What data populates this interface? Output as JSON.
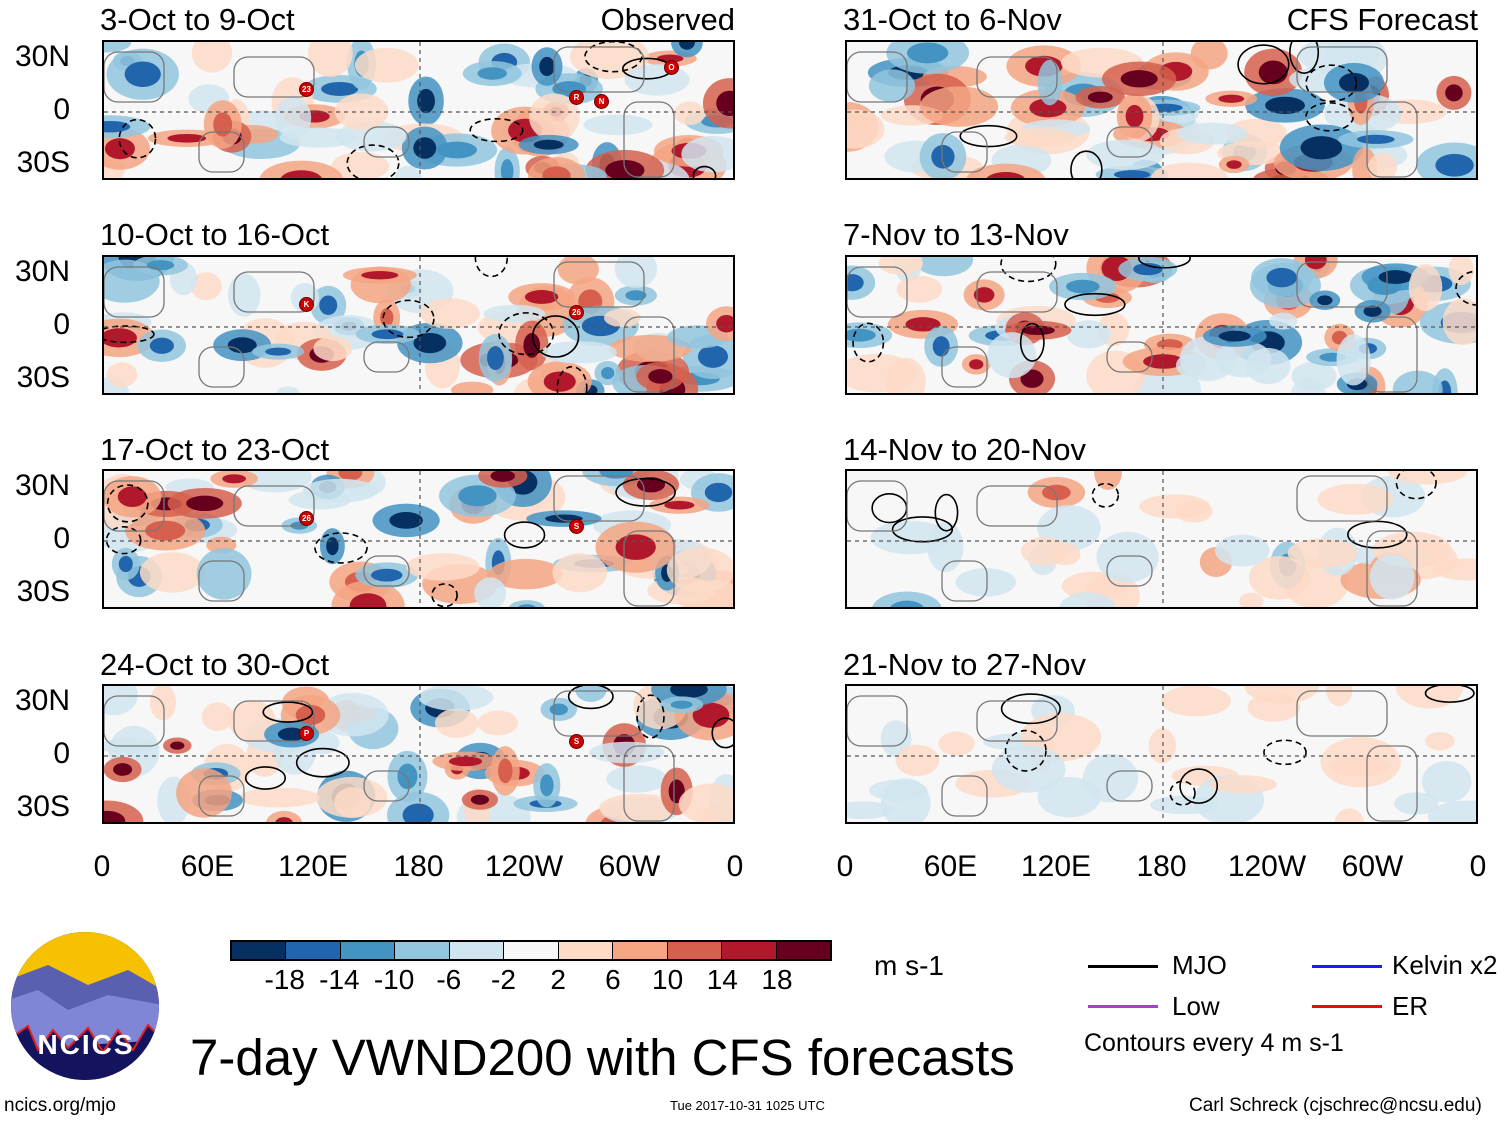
{
  "column_headers": {
    "observed": "Observed",
    "forecast": "CFS Forecast"
  },
  "panels_left": [
    {
      "title": "3-Oct to 9-Oct",
      "storms": [
        "23",
        "R",
        "N",
        "O"
      ]
    },
    {
      "title": "10-Oct to 16-Oct",
      "storms": [
        "K",
        "26"
      ]
    },
    {
      "title": "17-Oct to 23-Oct",
      "storms": [
        "26",
        "S"
      ]
    },
    {
      "title": "24-Oct to 30-Oct",
      "storms": [
        "P",
        "S"
      ]
    }
  ],
  "panels_right": [
    {
      "title": "31-Oct to 6-Nov"
    },
    {
      "title": "7-Nov to 13-Nov"
    },
    {
      "title": "14-Nov to 20-Nov"
    },
    {
      "title": "21-Nov to 27-Nov"
    }
  ],
  "y_ticks": [
    "30N",
    "0",
    "30S"
  ],
  "x_ticks": [
    "0",
    "60E",
    "120E",
    "180",
    "120W",
    "60W",
    "0"
  ],
  "colorbar": {
    "colors": [
      "#053061",
      "#2166ac",
      "#4393c3",
      "#92c5de",
      "#d1e5f0",
      "#f7f7f7",
      "#fddbc7",
      "#f4a582",
      "#d6604d",
      "#b2182b",
      "#67001f"
    ],
    "labels": [
      "-18",
      "-14",
      "-10",
      "-6",
      "-2",
      "2",
      "6",
      "10",
      "14",
      "18"
    ],
    "units": "m s-1"
  },
  "legend": {
    "items": [
      {
        "label": "MJO",
        "color": "#000000"
      },
      {
        "label": "Kelvin x2",
        "color": "#1a1aff"
      },
      {
        "label": "Low",
        "color": "#a040e0"
      },
      {
        "label": "ER",
        "color": "#e01010"
      }
    ],
    "note": "Contours every 4 m s-1"
  },
  "logo_text": "NCICS",
  "main_title": "7-day VWND200 with CFS forecasts",
  "footer": {
    "url": "ncics.org/mjo",
    "timestamp": "Tue 2017-10-31 1025 UTC",
    "author": "Carl Schreck (cjschrec@ncsu.edu)"
  },
  "chart_data": {
    "type": "heatmap",
    "title": "7-day VWND200 with CFS forecasts",
    "units": "m s-1",
    "x_ticks": [
      "0",
      "60E",
      "120E",
      "180",
      "120W",
      "60W",
      "0"
    ],
    "y_ticks": [
      "30N",
      "0",
      "30S"
    ],
    "color_levels": [
      -18,
      -14,
      -10,
      -6,
      -2,
      2,
      6,
      10,
      14,
      18
    ],
    "contour_interval": 4,
    "legend_placement": "bottom-right"
  }
}
